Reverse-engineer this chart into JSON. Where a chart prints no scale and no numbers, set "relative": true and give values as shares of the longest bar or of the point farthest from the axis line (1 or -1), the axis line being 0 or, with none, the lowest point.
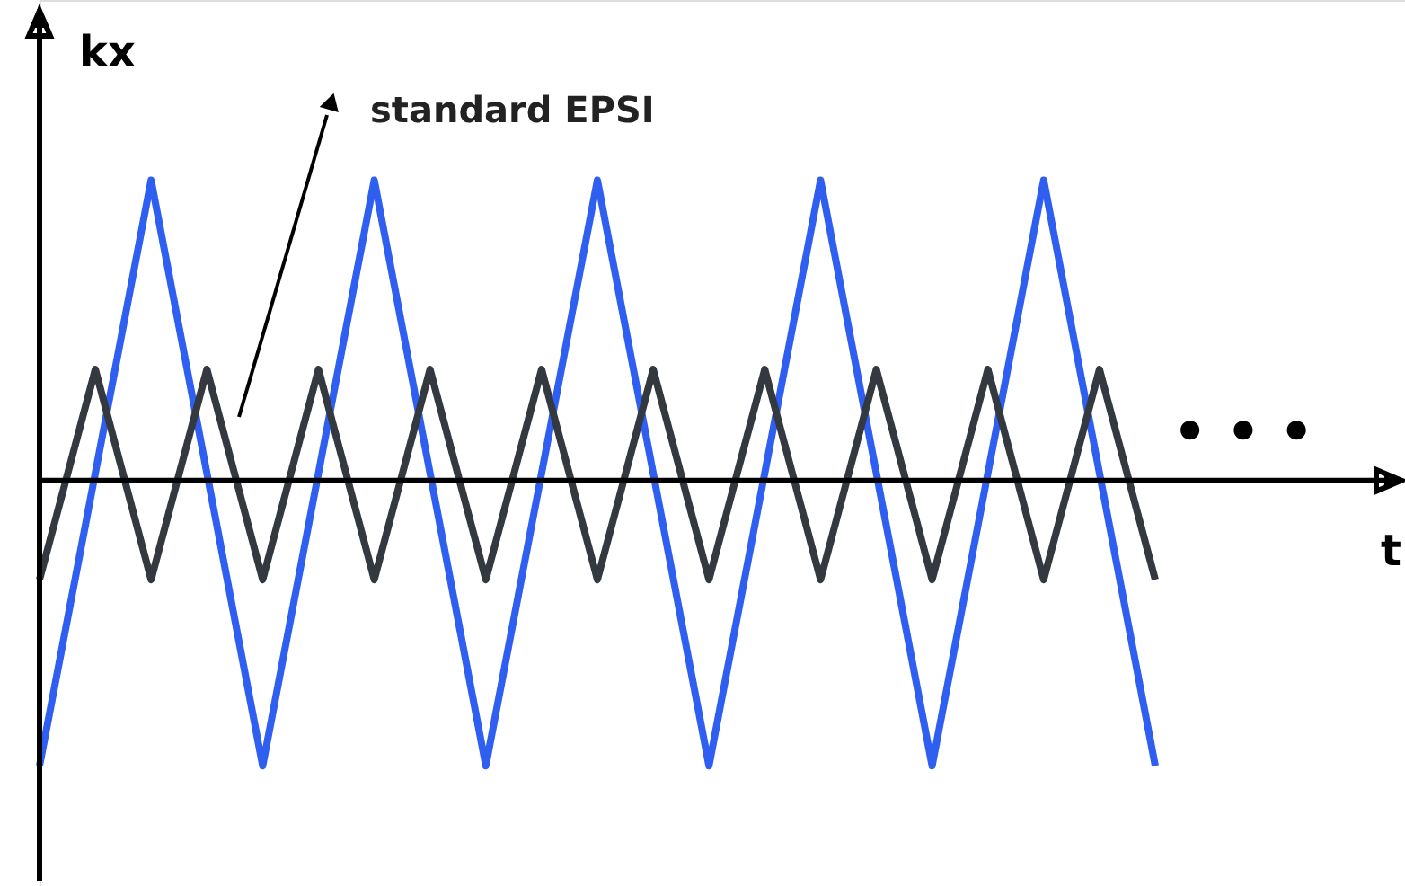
{
  "chart_data": {
    "type": "line",
    "relative": true,
    "xlabel": "t",
    "ylabel": "kx",
    "marker": "none",
    "line_style": "solid",
    "categories": [
      null,
      null,
      null,
      null,
      null,
      null,
      null,
      null,
      null,
      null,
      null,
      null,
      null,
      null,
      null,
      null,
      null,
      null,
      null,
      null,
      null
    ],
    "annotations": [
      "standard EPSI",
      "• • •"
    ],
    "series": [
      {
        "color": "#2f5ff0",
        "values": [
          -0.95,
          0.025,
          1,
          0.025,
          -0.95,
          0.025,
          1,
          0.025,
          -0.95,
          0.025,
          1,
          0.025,
          -0.95,
          0.025,
          1,
          0.025,
          -0.95,
          0.025,
          1,
          0.025,
          -0.95
        ]
      },
      {
        "color": "#33393f",
        "values": [
          -0.33,
          0.37,
          -0.33,
          0.37,
          -0.33,
          0.37,
          -0.33,
          0.37,
          -0.33,
          0.37,
          -0.33,
          0.37,
          -0.33,
          0.37,
          -0.33,
          0.37,
          -0.33,
          0.37,
          -0.33,
          0.37,
          -0.33
        ]
      }
    ]
  }
}
